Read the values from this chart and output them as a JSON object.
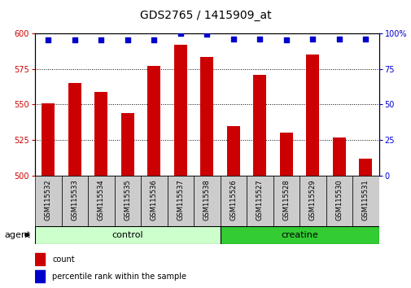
{
  "title": "GDS2765 / 1415909_at",
  "samples": [
    "GSM115532",
    "GSM115533",
    "GSM115534",
    "GSM115535",
    "GSM115536",
    "GSM115537",
    "GSM115538",
    "GSM115526",
    "GSM115527",
    "GSM115528",
    "GSM115529",
    "GSM115530",
    "GSM115531"
  ],
  "counts": [
    551,
    565,
    559,
    544,
    577,
    592,
    583,
    535,
    571,
    530,
    585,
    527,
    512
  ],
  "percentiles": [
    95,
    95,
    95,
    95,
    95,
    100,
    99,
    96,
    96,
    95,
    96,
    96,
    96
  ],
  "bar_color": "#cc0000",
  "dot_color": "#0000cc",
  "ylim_left": [
    500,
    600
  ],
  "ylim_right": [
    0,
    100
  ],
  "yticks_left": [
    500,
    525,
    550,
    575,
    600
  ],
  "yticks_right": [
    0,
    25,
    50,
    75,
    100
  ],
  "control_color": "#ccffcc",
  "creatine_color": "#33cc33",
  "bar_width": 0.5,
  "dot_size": 22,
  "title_fontsize": 10,
  "tick_fontsize": 7,
  "sample_fontsize": 6,
  "group_fontsize": 8,
  "legend_fontsize": 7,
  "agent_fontsize": 8
}
